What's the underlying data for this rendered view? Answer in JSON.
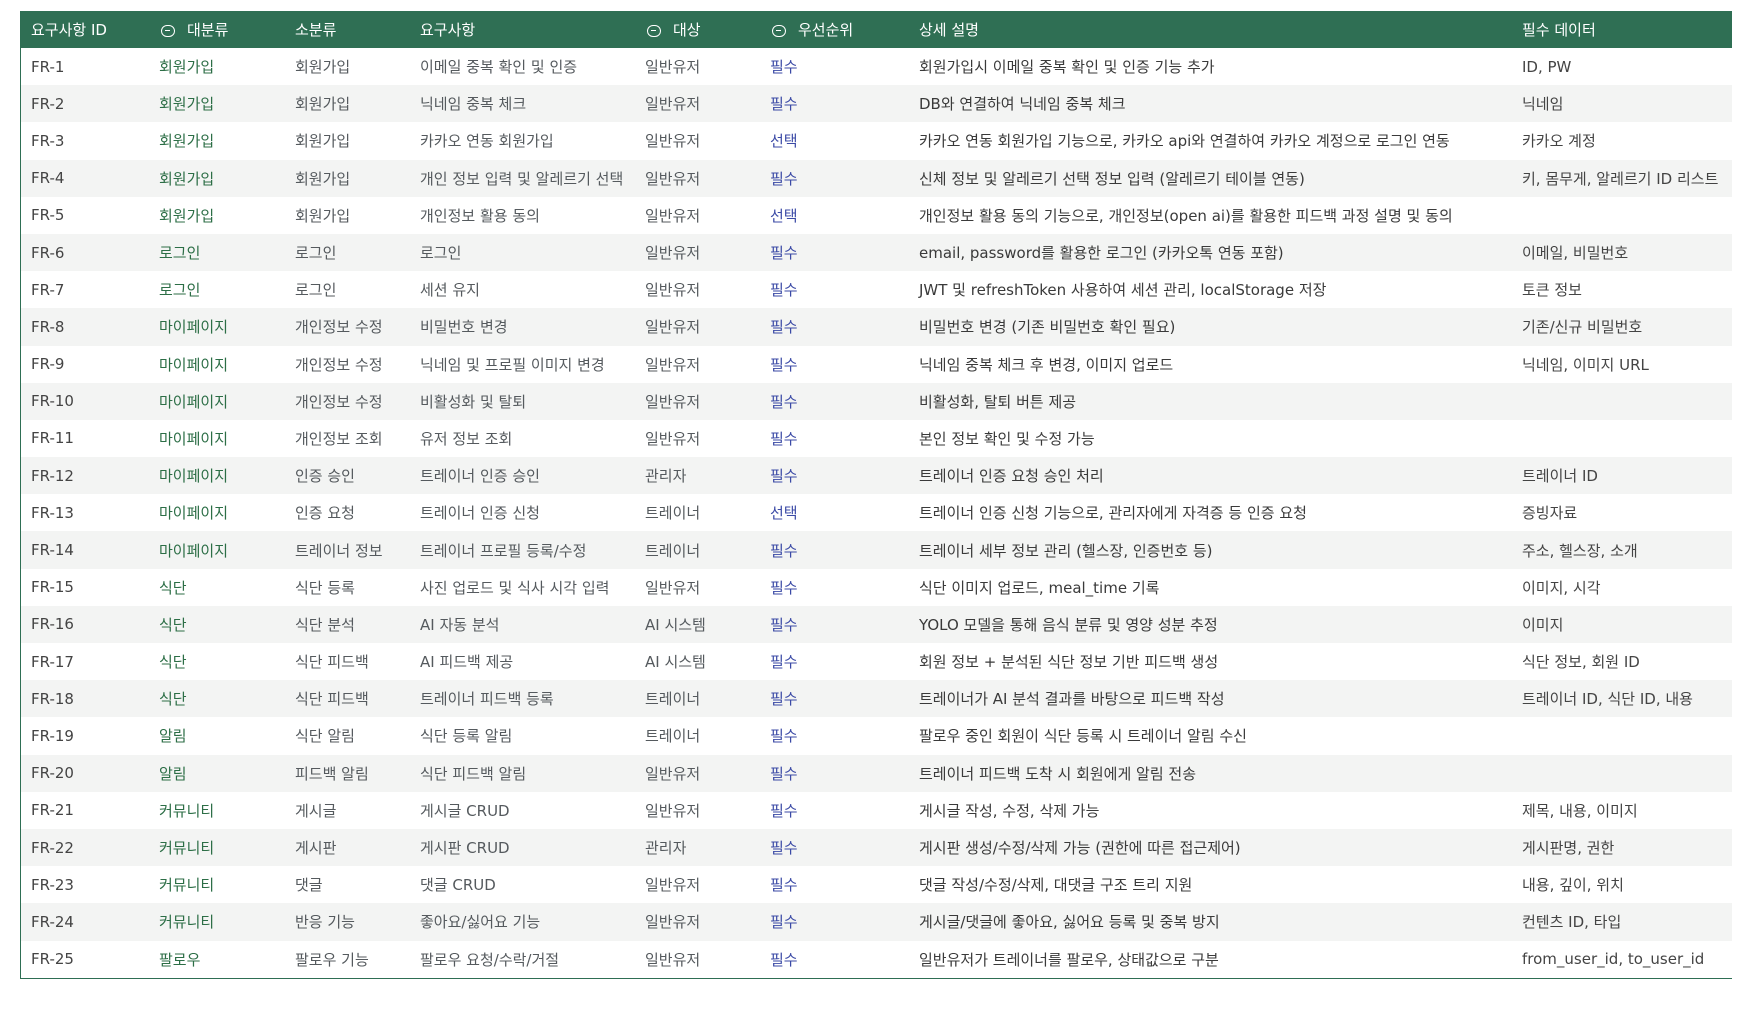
{
  "header": {
    "id": "요구사항 ID",
    "major": "대분류",
    "minor": "소분류",
    "requirement": "요구사항",
    "target": "대상",
    "priority": "우선순위",
    "description": "상세 설명",
    "required_data": "필수 데이터"
  },
  "colors": {
    "header_bg": "#2f6f54",
    "category_text": "#2c6e46",
    "priority_text": "#3b4aa6"
  },
  "rows": [
    {
      "id": "FR-1",
      "major": "회원가입",
      "minor": "회원가입",
      "req": "이메일 중복 확인 및 인증",
      "target": "일반유저",
      "priority": "필수",
      "desc": "회원가입시 이메일 중복 확인 및 인증 기능 추가",
      "data": "ID, PW"
    },
    {
      "id": "FR-2",
      "major": "회원가입",
      "minor": "회원가입",
      "req": "닉네임 중복 체크",
      "target": "일반유저",
      "priority": "필수",
      "desc": "DB와 연결하여 닉네임 중복 체크",
      "data": "닉네임"
    },
    {
      "id": "FR-3",
      "major": "회원가입",
      "minor": "회원가입",
      "req": "카카오 연동 회원가입",
      "target": "일반유저",
      "priority": "선택",
      "desc": "카카오 연동 회원가입 기능으로, 카카오 api와 연결하여 카카오 계정으로 로그인 연동",
      "data": "카카오 계정"
    },
    {
      "id": "FR-4",
      "major": "회원가입",
      "minor": "회원가입",
      "req": "개인 정보 입력 및 알레르기 선택",
      "target": "일반유저",
      "priority": "필수",
      "desc": "신체 정보 및 알레르기 선택 정보 입력 (알레르기 테이블 연동)",
      "data": "키, 몸무게, 알레르기 ID 리스트"
    },
    {
      "id": "FR-5",
      "major": "회원가입",
      "minor": "회원가입",
      "req": "개인정보 활용 동의",
      "target": "일반유저",
      "priority": "선택",
      "desc": "개인정보 활용 동의 기능으로, 개인정보(open ai)를 활용한 피드백 과정 설명 및 동의",
      "data": ""
    },
    {
      "id": "FR-6",
      "major": "로그인",
      "minor": "로그인",
      "req": "로그인",
      "target": "일반유저",
      "priority": "필수",
      "desc": "email, password를 활용한 로그인 (카카오톡 연동 포함)",
      "data": "이메일, 비밀번호"
    },
    {
      "id": "FR-7",
      "major": "로그인",
      "minor": "로그인",
      "req": "세션 유지",
      "target": "일반유저",
      "priority": "필수",
      "desc": "JWT 및 refreshToken 사용하여 세션 관리, localStorage 저장",
      "data": "토큰 정보"
    },
    {
      "id": "FR-8",
      "major": "마이페이지",
      "minor": "개인정보 수정",
      "req": "비밀번호 변경",
      "target": "일반유저",
      "priority": "필수",
      "desc": "비밀번호 변경 (기존 비밀번호 확인 필요)",
      "data": "기존/신규 비밀번호"
    },
    {
      "id": "FR-9",
      "major": "마이페이지",
      "minor": "개인정보 수정",
      "req": "닉네임 및 프로필 이미지 변경",
      "target": "일반유저",
      "priority": "필수",
      "desc": "닉네임 중복 체크 후 변경, 이미지 업로드",
      "data": "닉네임, 이미지 URL"
    },
    {
      "id": "FR-10",
      "major": "마이페이지",
      "minor": "개인정보 수정",
      "req": "비활성화 및 탈퇴",
      "target": "일반유저",
      "priority": "필수",
      "desc": "비활성화, 탈퇴 버튼 제공",
      "data": ""
    },
    {
      "id": "FR-11",
      "major": "마이페이지",
      "minor": "개인정보 조회",
      "req": "유저 정보 조회",
      "target": "일반유저",
      "priority": "필수",
      "desc": "본인 정보 확인 및 수정 가능",
      "data": ""
    },
    {
      "id": "FR-12",
      "major": "마이페이지",
      "minor": "인증 승인",
      "req": "트레이너 인증 승인",
      "target": "관리자",
      "priority": "필수",
      "desc": "트레이너 인증 요청 승인 처리",
      "data": "트레이너 ID"
    },
    {
      "id": "FR-13",
      "major": "마이페이지",
      "minor": "인증 요청",
      "req": "트레이너 인증 신청",
      "target": "트레이너",
      "priority": "선택",
      "desc": "트레이너 인증 신청 기능으로, 관리자에게 자격증 등 인증 요청",
      "data": "증빙자료"
    },
    {
      "id": "FR-14",
      "major": "마이페이지",
      "minor": "트레이너 정보",
      "req": "트레이너 프로필 등록/수정",
      "target": "트레이너",
      "priority": "필수",
      "desc": "트레이너 세부 정보 관리 (헬스장, 인증번호 등)",
      "data": "주소, 헬스장, 소개"
    },
    {
      "id": "FR-15",
      "major": "식단",
      "minor": "식단 등록",
      "req": "사진 업로드 및 식사 시각 입력",
      "target": "일반유저",
      "priority": "필수",
      "desc": "식단 이미지 업로드, meal_time 기록",
      "data": "이미지, 시각"
    },
    {
      "id": "FR-16",
      "major": "식단",
      "minor": "식단 분석",
      "req": "AI 자동 분석",
      "target": "AI 시스템",
      "priority": "필수",
      "desc": "YOLO 모델을 통해 음식 분류 및 영양 성분 추정",
      "data": "이미지"
    },
    {
      "id": "FR-17",
      "major": "식단",
      "minor": "식단 피드백",
      "req": "AI 피드백 제공",
      "target": "AI 시스템",
      "priority": "필수",
      "desc": "회원 정보 + 분석된 식단 정보 기반 피드백 생성",
      "data": "식단 정보, 회원 ID"
    },
    {
      "id": "FR-18",
      "major": "식단",
      "minor": "식단 피드백",
      "req": "트레이너 피드백 등록",
      "target": "트레이너",
      "priority": "필수",
      "desc": "트레이너가 AI 분석 결과를 바탕으로 피드백 작성",
      "data": "트레이너 ID, 식단 ID, 내용"
    },
    {
      "id": "FR-19",
      "major": "알림",
      "minor": "식단 알림",
      "req": "식단 등록 알림",
      "target": "트레이너",
      "priority": "필수",
      "desc": "팔로우 중인 회원이 식단 등록 시 트레이너 알림 수신",
      "data": ""
    },
    {
      "id": "FR-20",
      "major": "알림",
      "minor": "피드백 알림",
      "req": "식단 피드백 알림",
      "target": "일반유저",
      "priority": "필수",
      "desc": "트레이너 피드백 도착 시 회원에게 알림 전송",
      "data": ""
    },
    {
      "id": "FR-21",
      "major": "커뮤니티",
      "minor": "게시글",
      "req": "게시글 CRUD",
      "target": "일반유저",
      "priority": "필수",
      "desc": "게시글 작성, 수정, 삭제 가능",
      "data": "제목, 내용, 이미지"
    },
    {
      "id": "FR-22",
      "major": "커뮤니티",
      "minor": "게시판",
      "req": "게시판 CRUD",
      "target": "관리자",
      "priority": "필수",
      "desc": "게시판 생성/수정/삭제 가능 (권한에 따른 접근제어)",
      "data": "게시판명, 권한"
    },
    {
      "id": "FR-23",
      "major": "커뮤니티",
      "minor": "댓글",
      "req": "댓글 CRUD",
      "target": "일반유저",
      "priority": "필수",
      "desc": "댓글 작성/수정/삭제, 대댓글 구조 트리 지원",
      "data": "내용, 깊이, 위치"
    },
    {
      "id": "FR-24",
      "major": "커뮤니티",
      "minor": "반응 기능",
      "req": "좋아요/싫어요 기능",
      "target": "일반유저",
      "priority": "필수",
      "desc": "게시글/댓글에 좋아요, 싫어요 등록 및 중복 방지",
      "data": "컨텐츠 ID, 타입"
    },
    {
      "id": "FR-25",
      "major": "팔로우",
      "minor": "팔로우 기능",
      "req": "팔로우 요청/수락/거절",
      "target": "일반유저",
      "priority": "필수",
      "desc": "일반유저가 트레이너를 팔로우, 상태값으로 구분",
      "data": "from_user_id, to_user_id"
    }
  ]
}
